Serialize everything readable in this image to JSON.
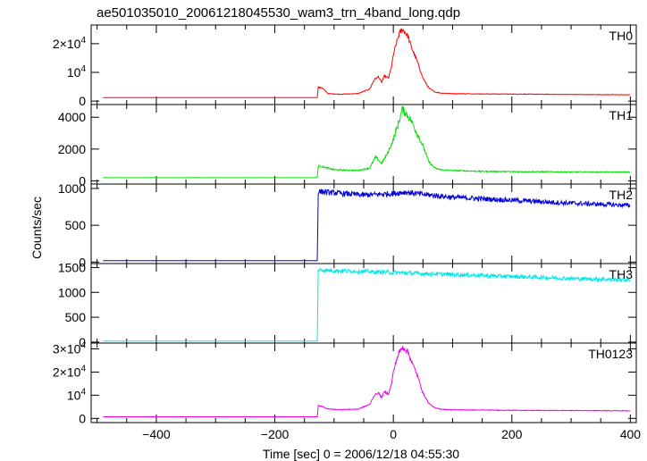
{
  "title": "ae501035010_20061218045530_wam3_trn_4band_long.qdp",
  "ylabel": "Counts/sec",
  "xlabel": "Time [sec] 0 = 2006/12/18 04:55:30",
  "chart_data": {
    "type": "line",
    "xlim": [
      -510,
      410
    ],
    "x_ticks": [
      -400,
      -200,
      0,
      200,
      400
    ],
    "x_tick_labels": [
      "−400",
      "−200",
      "0",
      "200",
      "400"
    ],
    "panels": [
      {
        "name": "TH0",
        "color": "#ff0000",
        "ylim": [
          -1200,
          26500
        ],
        "y_ticks": [
          0,
          10000,
          20000
        ],
        "y_tick_labels": [
          {
            "base": "0",
            "exp": ""
          },
          {
            "base": "10",
            "exp": "4"
          },
          {
            "base": "2×10",
            "exp": "4"
          }
        ],
        "x": [
          -490,
          -128,
          -127,
          -120,
          -110,
          -90,
          -60,
          -40,
          -32,
          -25,
          -20,
          -15,
          -8,
          -3,
          0,
          5,
          10,
          15,
          20,
          25,
          30,
          40,
          50,
          60,
          70,
          80,
          100,
          150,
          200,
          300,
          400
        ],
        "y": [
          1200,
          1200,
          4800,
          4600,
          2600,
          2400,
          2600,
          4200,
          7500,
          8500,
          6500,
          8800,
          8000,
          12000,
          16000,
          20000,
          23500,
          25000,
          24000,
          22500,
          19000,
          14000,
          8000,
          4500,
          3200,
          2800,
          2600,
          2500,
          2450,
          2300,
          2200
        ],
        "noise": 0.04
      },
      {
        "name": "TH1",
        "color": "#00e000",
        "ylim": [
          -200,
          4800
        ],
        "y_ticks": [
          0,
          2000,
          4000
        ],
        "y_tick_labels": [
          {
            "base": "0",
            "exp": ""
          },
          {
            "base": "2000",
            "exp": ""
          },
          {
            "base": "4000",
            "exp": ""
          }
        ],
        "x": [
          -490,
          -128,
          -127,
          -100,
          -60,
          -40,
          -30,
          -20,
          -10,
          0,
          10,
          15,
          20,
          30,
          40,
          50,
          60,
          70,
          80,
          100,
          150,
          200,
          300,
          400
        ],
        "y": [
          200,
          200,
          950,
          700,
          650,
          800,
          1500,
          1100,
          1700,
          2600,
          3800,
          4500,
          4300,
          3800,
          3000,
          2200,
          1200,
          800,
          700,
          650,
          600,
          580,
          560,
          550
        ],
        "noise": 0.06
      },
      {
        "name": "TH2",
        "color": "#0000dd",
        "ylim": [
          -20,
          1060
        ],
        "y_ticks": [
          0,
          500,
          1000
        ],
        "y_tick_labels": [
          {
            "base": "0",
            "exp": ""
          },
          {
            "base": "500",
            "exp": ""
          },
          {
            "base": "1000",
            "exp": ""
          }
        ],
        "x": [
          -490,
          -128,
          -127,
          -100,
          -50,
          0,
          20,
          50,
          100,
          200,
          300,
          400
        ],
        "y": [
          20,
          20,
          960,
          940,
          910,
          930,
          950,
          920,
          880,
          840,
          800,
          770
        ],
        "noise": 0.04
      },
      {
        "name": "TH3",
        "color": "#00e8e8",
        "ylim": [
          -20,
          1580
        ],
        "y_ticks": [
          0,
          500,
          1000,
          1500
        ],
        "y_tick_labels": [
          {
            "base": "0",
            "exp": ""
          },
          {
            "base": "500",
            "exp": ""
          },
          {
            "base": "1000",
            "exp": ""
          },
          {
            "base": "1500",
            "exp": ""
          }
        ],
        "x": [
          -490,
          -128,
          -127,
          -100,
          0,
          100,
          200,
          300,
          400
        ],
        "y": [
          20,
          20,
          1450,
          1440,
          1400,
          1360,
          1320,
          1280,
          1250
        ],
        "noise": 0.03
      },
      {
        "name": "TH0123",
        "color": "#ee00ee",
        "ylim": [
          -1800,
          32500
        ],
        "y_ticks": [
          0,
          10000,
          20000,
          30000
        ],
        "y_tick_labels": [
          {
            "base": "0",
            "exp": ""
          },
          {
            "base": "10",
            "exp": "4"
          },
          {
            "base": "2×10",
            "exp": "4"
          },
          {
            "base": "3×10",
            "exp": "4"
          }
        ],
        "x": [
          -490,
          -128,
          -127,
          -120,
          -110,
          -90,
          -60,
          -40,
          -32,
          -25,
          -20,
          -15,
          -8,
          -3,
          0,
          5,
          10,
          15,
          20,
          25,
          30,
          40,
          50,
          60,
          70,
          80,
          100,
          150,
          200,
          300,
          400
        ],
        "y": [
          700,
          700,
          5500,
          5200,
          4000,
          3800,
          4000,
          6000,
          10000,
          11000,
          9000,
          11500,
          10500,
          15000,
          20000,
          25000,
          28500,
          30500,
          30000,
          28500,
          25000,
          19000,
          11000,
          6500,
          4500,
          4000,
          3700,
          3600,
          3500,
          3400,
          3300
        ],
        "noise": 0.04
      }
    ]
  }
}
